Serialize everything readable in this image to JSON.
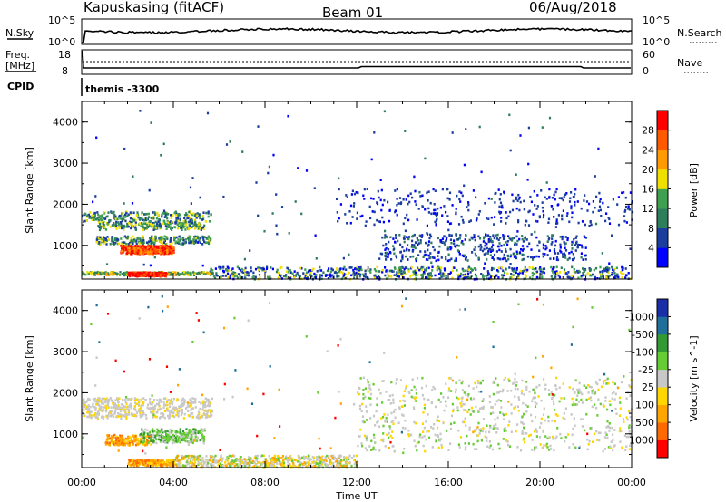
{
  "header": {
    "station": "Kapuskasing (fitACF)",
    "beam": "Beam 01",
    "date": "06/Aug/2018"
  },
  "noise_panel": {
    "left_label": "N.Sky",
    "left_ticks": [
      "10^5",
      "10^0"
    ],
    "right_label": "N.Search",
    "right_ticks": [
      "10^5",
      "10^0"
    ]
  },
  "freq_panel": {
    "left_label_1": "Freq.",
    "left_label_2": "[MHz]",
    "left_ticks": [
      "18",
      "8"
    ],
    "right_label": "Nave",
    "right_ticks": [
      "60",
      "0"
    ]
  },
  "cpid": {
    "label": "CPID",
    "value": "themis -3300"
  },
  "colors": {
    "power_scale": [
      "#0000ff",
      "#1a3d9e",
      "#2e7d5b",
      "#3fa050",
      "#f0e000",
      "#ff9a00",
      "#ff5a00",
      "#ff0000"
    ],
    "velocity_scale": [
      "#ff0000",
      "#ff6a00",
      "#ffa500",
      "#ffd700",
      "#c8c8c8",
      "#66cc33",
      "#339933",
      "#1f6f9a",
      "#1a2ea8"
    ]
  },
  "chart_data": [
    {
      "type": "heatmap",
      "panel": "power",
      "ylabel": "Slant Range [km]",
      "xlim": [
        "00:00",
        "24:00"
      ],
      "ylim": [
        180,
        4500
      ],
      "yticks": [
        "1000",
        "2000",
        "3000",
        "4000"
      ],
      "colorbar_label": "Power [dB]",
      "colorbar_ticks": [
        "4",
        "8",
        "12",
        "16",
        "20",
        "24",
        "28"
      ],
      "regions": [
        {
          "x": [
            "00:00",
            "05:40"
          ],
          "range_km": [
            300,
            380
          ],
          "power_db": "4-28",
          "note": ""
        },
        {
          "x": [
            "02:00",
            "03:40"
          ],
          "range_km": [
            270,
            370
          ],
          "power_db": 28
        },
        {
          "x": [
            "01:40",
            "04:00"
          ],
          "range_km": [
            820,
            1020
          ],
          "power_db": 28
        },
        {
          "x": [
            "00:40",
            "05:20"
          ],
          "range_km": [
            1400,
            1600
          ],
          "power_db": 12
        },
        {
          "x": [
            "00:00",
            "05:40"
          ],
          "range_km": [
            1600,
            1850
          ],
          "power_db": 8
        },
        {
          "x": [
            "05:30",
            "24:00"
          ],
          "range_km": [
            200,
            500
          ],
          "power_db": "4-16"
        },
        {
          "x": [
            "13:00",
            "22:00"
          ],
          "range_km": [
            650,
            1300
          ],
          "power_db": 6
        },
        {
          "x": [
            "11:00",
            "24:00"
          ],
          "range_km": [
            1500,
            2400
          ],
          "power_db": 4
        }
      ]
    },
    {
      "type": "heatmap",
      "panel": "velocity",
      "ylabel": "Slant Range [km]",
      "xlabel": "Time UT",
      "xlim": [
        "00:00",
        "24:00"
      ],
      "ylim": [
        180,
        4500
      ],
      "yticks": [
        "1000",
        "2000",
        "3000",
        "4000"
      ],
      "xticks": [
        "00:00",
        "04:00",
        "08:00",
        "12:00",
        "16:00",
        "20:00",
        "00:00"
      ],
      "colorbar_label": "Velocity [m s^-1]",
      "colorbar_ticks": [
        "1000",
        "500",
        "100",
        "25",
        "-25",
        "-100",
        "-500",
        "-1000"
      ],
      "regions": [
        {
          "x": [
            "00:00",
            "05:40"
          ],
          "range_km": [
            1400,
            1900
          ],
          "velocity": "25 to -25"
        },
        {
          "x": [
            "02:30",
            "05:20"
          ],
          "range_km": [
            800,
            1150
          ],
          "velocity": "100 to 500"
        },
        {
          "x": [
            "01:00",
            "03:00"
          ],
          "range_km": [
            750,
            1000
          ],
          "velocity": "-100 to -500"
        },
        {
          "x": [
            "02:00",
            "04:00"
          ],
          "range_km": [
            250,
            400
          ],
          "velocity": "-100 to -500"
        },
        {
          "x": [
            "04:00",
            "12:00"
          ],
          "range_km": [
            200,
            500
          ],
          "velocity": "25 to -100"
        },
        {
          "x": [
            "12:00",
            "24:00"
          ],
          "range_km": [
            600,
            2400
          ],
          "velocity": "25 to -25"
        }
      ]
    }
  ]
}
